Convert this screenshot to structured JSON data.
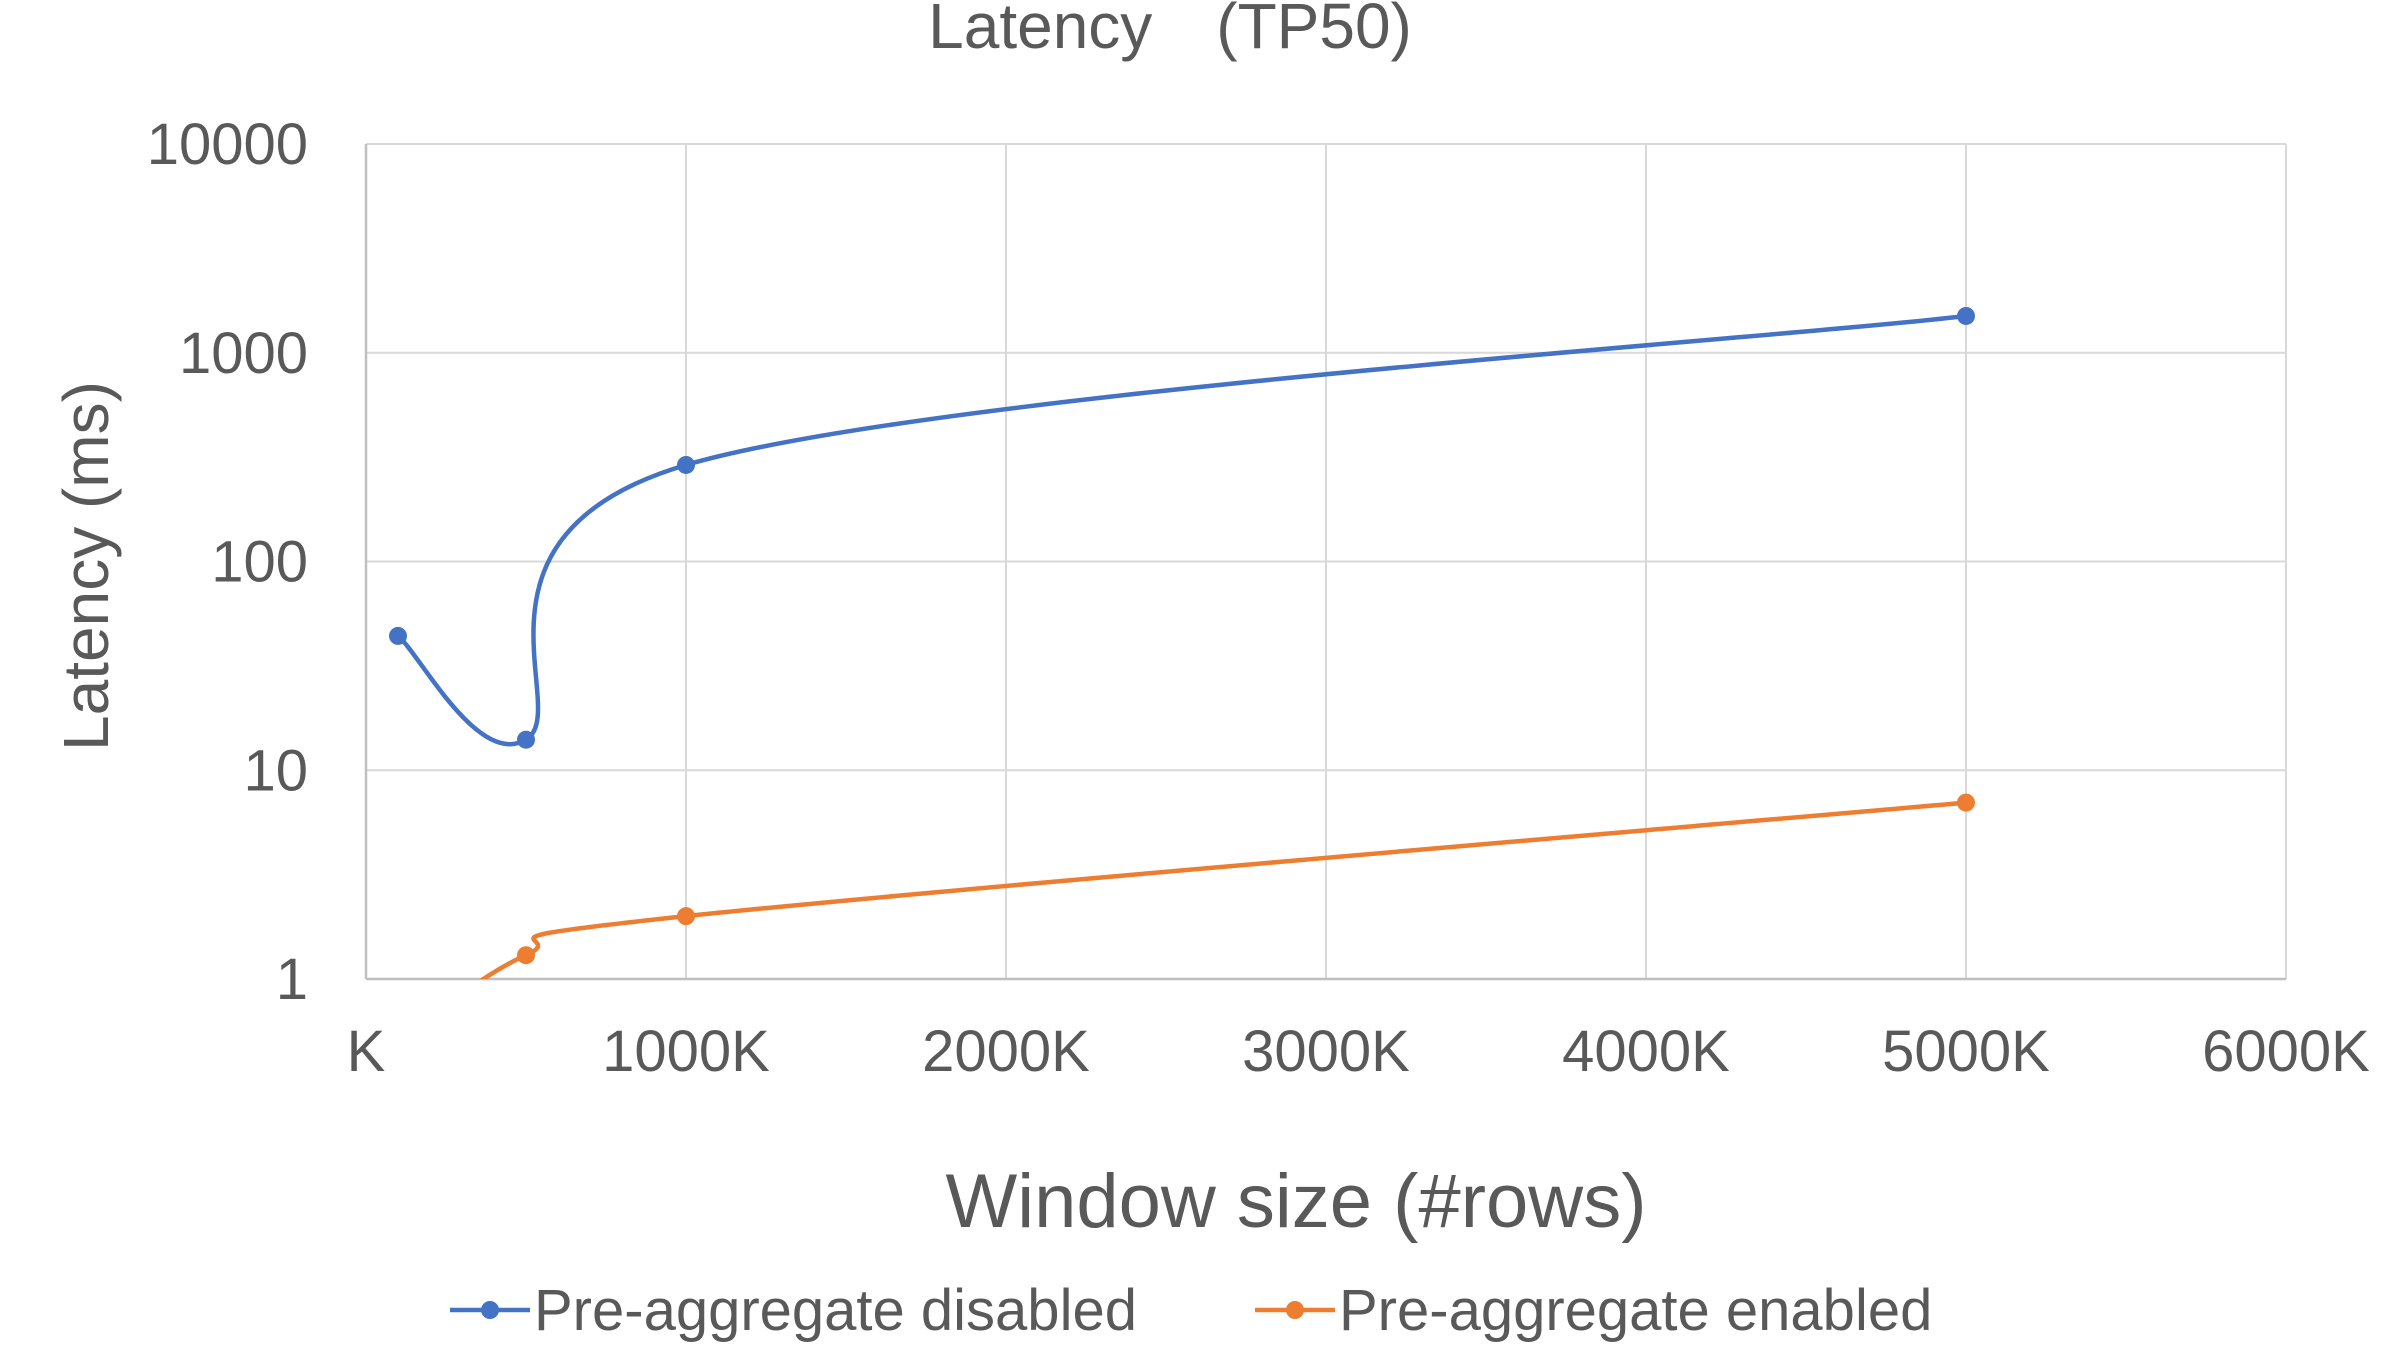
{
  "chart_data": {
    "type": "line",
    "title": "Latency　(TP50)",
    "xlabel": "Window size (#rows)",
    "ylabel": "Latency (ms)",
    "x_tick_labels": [
      "K",
      "1000K",
      "2000K",
      "3000K",
      "4000K",
      "5000K",
      "6000K"
    ],
    "y_tick_labels": [
      "1",
      "10",
      "100",
      "1000",
      "10000"
    ],
    "xlim": [
      0,
      6000
    ],
    "ylim": [
      1,
      10000
    ],
    "y_scale": "log",
    "grid": true,
    "legend_position": "bottom",
    "smoothed": true,
    "series": [
      {
        "name": "Pre-aggregate disabled",
        "color": "#4472c4",
        "x": [
          100,
          500,
          1000,
          5000
        ],
        "values": [
          44,
          14,
          290,
          1500
        ]
      },
      {
        "name": "Pre-aggregate enabled",
        "color": "#ed7d31",
        "x": [
          100,
          500,
          1000,
          5000
        ],
        "values": [
          0.5,
          1.3,
          2,
          7
        ]
      }
    ]
  }
}
